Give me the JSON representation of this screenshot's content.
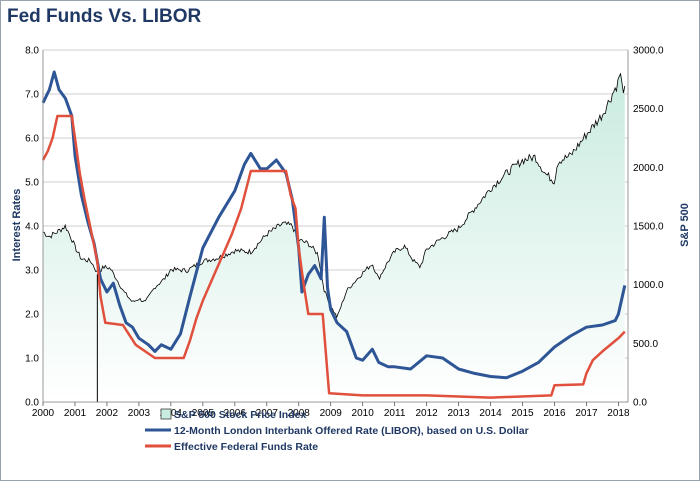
{
  "chart_data": {
    "type": "line",
    "title": "Fed Funds Vs. LIBOR",
    "ylabel_left": "Interest Rates",
    "ylabel_right": "S&P 500",
    "ylim_left": [
      0,
      8
    ],
    "ylim_right": [
      0,
      3000
    ],
    "xlim": [
      2000,
      2018.3
    ],
    "yticks_left": [
      "0.0",
      "1.0",
      "2.0",
      "3.0",
      "4.0",
      "5.0",
      "6.0",
      "7.0",
      "8.0"
    ],
    "yticks_right": [
      "0.0",
      "500.0",
      "1000.0",
      "1500.0",
      "2000.0",
      "2500.0",
      "3000.0"
    ],
    "xticks": [
      "2000",
      "2001",
      "2002",
      "2003",
      "2004",
      "2005",
      "2006",
      "2007",
      "2008",
      "2009",
      "2010",
      "2011",
      "2012",
      "2013",
      "2014",
      "2015",
      "2016",
      "2017",
      "2018"
    ],
    "grid": "horizontal",
    "legend_position": "bottom",
    "colors": {
      "sp500_fill_top": "#c9ebe0",
      "sp500_fill_bottom": "#ffffff",
      "sp500_line": "#000000",
      "libor": "#2e5596",
      "fedfunds": "#e0503c",
      "grid": "#bfbfbf",
      "axis_text": "#1f3864"
    },
    "marker_line_x": 2001.7,
    "series": [
      {
        "name": "S&P 500 Stock Price Index",
        "axis": "right",
        "style": "area",
        "x": [
          2000.0,
          2000.2,
          2000.5,
          2000.7,
          2000.9,
          2001.0,
          2001.2,
          2001.5,
          2001.7,
          2001.9,
          2002.1,
          2002.3,
          2002.5,
          2002.8,
          2003.0,
          2003.2,
          2003.5,
          2003.8,
          2004.0,
          2004.5,
          2005.0,
          2005.5,
          2006.0,
          2006.5,
          2007.0,
          2007.5,
          2007.8,
          2008.0,
          2008.3,
          2008.6,
          2008.8,
          2009.0,
          2009.2,
          2009.5,
          2010.0,
          2010.3,
          2010.5,
          2010.8,
          2011.0,
          2011.3,
          2011.6,
          2011.8,
          2012.0,
          2012.5,
          2013.0,
          2013.5,
          2014.0,
          2014.5,
          2015.0,
          2015.4,
          2015.7,
          2016.0,
          2016.1,
          2016.5,
          2017.0,
          2017.5,
          2018.0,
          2018.05,
          2018.1,
          2018.2
        ],
        "values": [
          1450,
          1410,
          1460,
          1500,
          1390,
          1320,
          1220,
          1200,
          1100,
          1150,
          1140,
          1050,
          950,
          850,
          880,
          850,
          980,
          1050,
          1130,
          1120,
          1200,
          1230,
          1290,
          1280,
          1430,
          1520,
          1500,
          1380,
          1350,
          1260,
          950,
          820,
          720,
          950,
          1100,
          1180,
          1050,
          1200,
          1280,
          1330,
          1200,
          1150,
          1300,
          1400,
          1480,
          1650,
          1820,
          1950,
          2060,
          2090,
          1950,
          1880,
          2050,
          2100,
          2280,
          2450,
          2730,
          2830,
          2700,
          2650
        ]
      },
      {
        "name": "12-Month London Interbank Offered Rate (LIBOR), based on U.S. Dollar",
        "axis": "left",
        "style": "line",
        "x": [
          2000.0,
          2000.2,
          2000.35,
          2000.5,
          2000.7,
          2000.9,
          2001.0,
          2001.2,
          2001.4,
          2001.6,
          2001.8,
          2002.0,
          2002.2,
          2002.4,
          2002.6,
          2002.8,
          2003.0,
          2003.3,
          2003.5,
          2003.7,
          2004.0,
          2004.3,
          2004.6,
          2005.0,
          2005.5,
          2006.0,
          2006.3,
          2006.5,
          2006.8,
          2007.0,
          2007.3,
          2007.6,
          2007.8,
          2008.0,
          2008.1,
          2008.3,
          2008.5,
          2008.7,
          2008.8,
          2008.9,
          2009.0,
          2009.2,
          2009.5,
          2009.8,
          2010.0,
          2010.3,
          2010.5,
          2010.8,
          2011.0,
          2011.5,
          2012.0,
          2012.5,
          2013.0,
          2013.5,
          2014.0,
          2014.5,
          2015.0,
          2015.5,
          2016.0,
          2016.5,
          2017.0,
          2017.5,
          2017.9,
          2018.0,
          2018.2
        ],
        "values": [
          6.8,
          7.1,
          7.5,
          7.1,
          6.9,
          6.5,
          5.6,
          4.7,
          4.1,
          3.6,
          2.8,
          2.5,
          2.7,
          2.2,
          1.8,
          1.7,
          1.45,
          1.3,
          1.15,
          1.3,
          1.2,
          1.55,
          2.4,
          3.5,
          4.2,
          4.8,
          5.4,
          5.65,
          5.3,
          5.3,
          5.5,
          5.2,
          4.6,
          3.5,
          2.5,
          2.9,
          3.1,
          2.8,
          4.2,
          2.6,
          2.1,
          1.8,
          1.6,
          1.0,
          0.95,
          1.2,
          0.9,
          0.8,
          0.8,
          0.75,
          1.05,
          1.0,
          0.75,
          0.65,
          0.58,
          0.55,
          0.7,
          0.9,
          1.25,
          1.5,
          1.7,
          1.75,
          1.85,
          2.0,
          2.65
        ]
      },
      {
        "name": "Effective Federal Funds Rate",
        "axis": "left",
        "style": "line",
        "x": [
          2000.0,
          2000.15,
          2000.3,
          2000.45,
          2000.9,
          2001.0,
          2001.15,
          2001.3,
          2001.5,
          2001.7,
          2001.8,
          2001.95,
          2002.5,
          2002.9,
          2003.5,
          2004.4,
          2004.6,
          2004.8,
          2005.0,
          2005.3,
          2005.6,
          2005.9,
          2006.2,
          2006.5,
          2007.6,
          2007.75,
          2007.9,
          2008.0,
          2008.15,
          2008.3,
          2008.75,
          2008.85,
          2008.95,
          2010.0,
          2012.0,
          2014.0,
          2015.9,
          2016.0,
          2016.9,
          2017.0,
          2017.2,
          2017.5,
          2017.95,
          2018.0,
          2018.2
        ],
        "values": [
          5.5,
          5.7,
          6.0,
          6.5,
          6.5,
          6.0,
          5.2,
          4.6,
          3.9,
          3.2,
          2.4,
          1.8,
          1.75,
          1.3,
          1.0,
          1.0,
          1.4,
          1.9,
          2.3,
          2.8,
          3.3,
          3.8,
          4.4,
          5.25,
          5.25,
          4.7,
          4.4,
          3.5,
          2.7,
          2.0,
          2.0,
          1.1,
          0.2,
          0.15,
          0.15,
          0.1,
          0.15,
          0.38,
          0.4,
          0.65,
          0.95,
          1.15,
          1.42,
          1.45,
          1.6
        ]
      }
    ]
  }
}
